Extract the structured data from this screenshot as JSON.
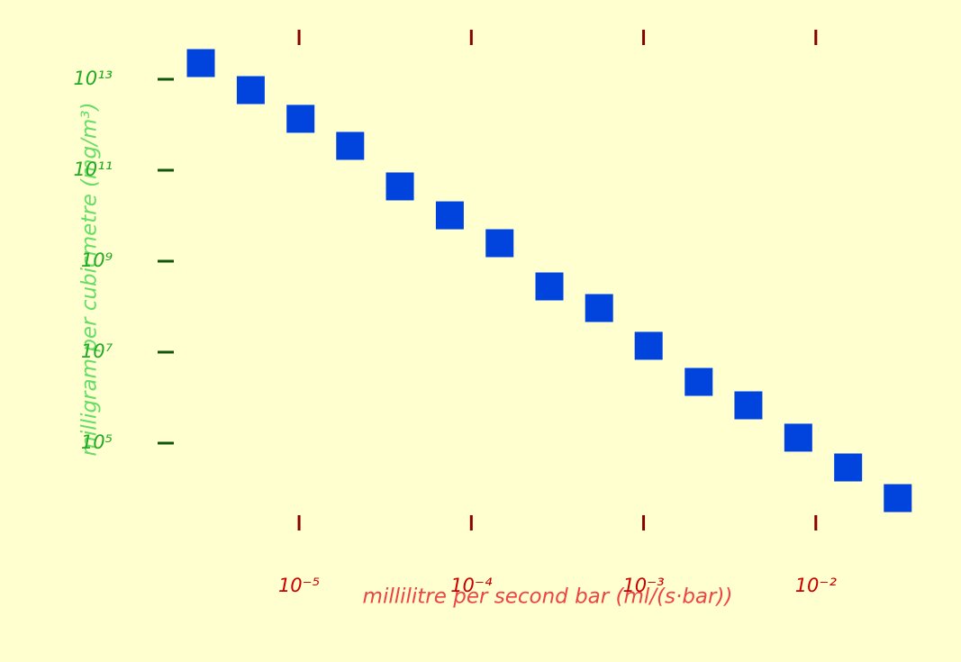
{
  "chart_data": {
    "type": "scatter",
    "x_label": "millilitre per second bar (ml/(s·bar))",
    "y_label": "milligram per cubicmetre (mg/m³)",
    "x": [
      2.69e-06,
      5.24e-06,
      1.02e-05,
      1.98e-05,
      3.85e-05,
      7.5e-05,
      0.000146,
      0.000284,
      0.000552,
      0.00107,
      0.00209,
      0.00406,
      0.00791,
      0.0154,
      0.0299
    ],
    "series": [
      {
        "color": "#0044dd",
        "values": [
          22700000000000.0,
          5780000000000.0,
          1350000000000.0,
          343000000000.0,
          44100000000.0,
          10200000000.0,
          2490000000.0,
          279000000.0,
          93400000.0,
          13800000.0,
          2220000.0,
          679000.0,
          132000.0,
          29200.0,
          6190.0
        ]
      }
    ],
    "x_log": true,
    "y_log": true,
    "xlim": [
      1.92e-06,
      0.042
    ],
    "ylim": [
      1810,
      81500000000000.0
    ],
    "xticks": [
      {
        "value": 1e-05,
        "label": "10⁻⁵"
      },
      {
        "value": 0.0001,
        "label": "10⁻⁴"
      },
      {
        "value": 0.001,
        "label": "10⁻³"
      },
      {
        "value": 0.01,
        "label": "10⁻²"
      }
    ],
    "yticks": [
      {
        "value": 100000.0,
        "label": "10⁵"
      },
      {
        "value": 10000000.0,
        "label": "10⁷"
      },
      {
        "value": 1000000000.0,
        "label": "10⁹"
      },
      {
        "value": 100000000000.0,
        "label": "10¹¹"
      },
      {
        "value": 10000000000000.0,
        "label": "10¹³"
      }
    ]
  }
}
